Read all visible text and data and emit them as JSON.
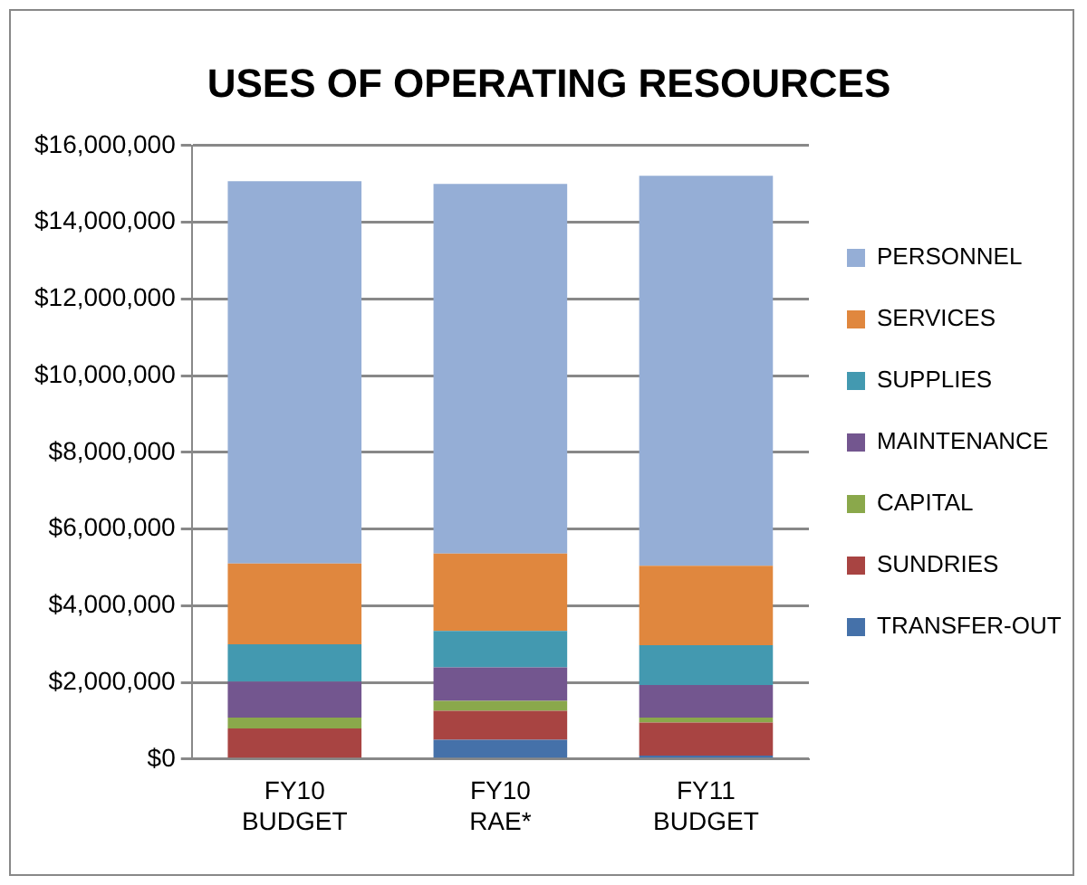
{
  "chart_data": {
    "type": "bar",
    "title": "USES OF OPERATING RESOURCES",
    "categories": [
      "FY10 BUDGET",
      "FY10 RAE*",
      "FY11 BUDGET"
    ],
    "stacked": true,
    "ylim": [
      0,
      16000000
    ],
    "yticks": [
      {
        "value": 0,
        "label": "$0"
      },
      {
        "value": 2000000,
        "label": "$2,000,000"
      },
      {
        "value": 4000000,
        "label": "$4,000,000"
      },
      {
        "value": 6000000,
        "label": "$6,000,000"
      },
      {
        "value": 8000000,
        "label": "$8,000,000"
      },
      {
        "value": 10000000,
        "label": "$10,000,000"
      },
      {
        "value": 12000000,
        "label": "$12,000,000"
      },
      {
        "value": 14000000,
        "label": "$14,000,000"
      },
      {
        "value": 16000000,
        "label": "$16,000,000"
      }
    ],
    "grid": "y",
    "legend": "right",
    "series": [
      {
        "name": "TRANSFER-OUT",
        "color": "#4571a9",
        "values": [
          null,
          500000,
          90000
        ]
      },
      {
        "name": "SUNDRIES",
        "color": "#a84442",
        "values": [
          800000,
          760000,
          860000
        ]
      },
      {
        "name": "CAPITAL",
        "color": "#8aa84b",
        "values": [
          280000,
          260000,
          130000
        ]
      },
      {
        "name": "MAINTENANCE",
        "color": "#73568f",
        "values": [
          940000,
          870000,
          850000
        ]
      },
      {
        "name": "SUPPLIES",
        "color": "#4399b0",
        "values": [
          970000,
          950000,
          1040000
        ]
      },
      {
        "name": "SERVICES",
        "color": "#e0873e",
        "values": [
          2110000,
          2020000,
          2070000
        ]
      },
      {
        "name": "PERSONNEL",
        "color": "#95aed6",
        "values": [
          9970000,
          9640000,
          10170000
        ]
      }
    ]
  }
}
